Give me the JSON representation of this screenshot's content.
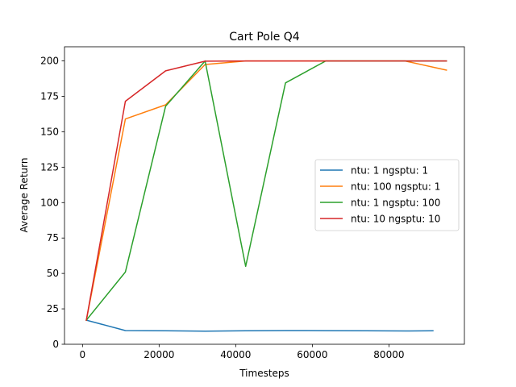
{
  "chart_data": {
    "type": "line",
    "title": "Cart Pole Q4",
    "xlabel": "Timesteps",
    "ylabel": "Average Return",
    "xlim": [
      -4700,
      99700
    ],
    "ylim": [
      0,
      210
    ],
    "xticks": [
      0,
      20000,
      40000,
      60000,
      80000
    ],
    "xtick_labels": [
      "0",
      "20000",
      "40000",
      "60000",
      "80000"
    ],
    "yticks": [
      0,
      25,
      50,
      75,
      100,
      125,
      150,
      175,
      200
    ],
    "ytick_labels": [
      "0",
      "25",
      "50",
      "75",
      "100",
      "125",
      "150",
      "175",
      "200"
    ],
    "grid": false,
    "legend_position": "center-right",
    "series": [
      {
        "name": "ntu: 1 ngsptu: 1",
        "color": "#1f77b4",
        "x": [
          1000,
          11200,
          21700,
          32000,
          42600,
          53000,
          63500,
          74000,
          84200,
          91500
        ],
        "y": [
          17,
          9.7,
          9.5,
          9.3,
          9.5,
          9.7,
          9.6,
          9.5,
          9.4,
          9.5
        ]
      },
      {
        "name": "ntu: 100 ngsptu: 1",
        "color": "#ff7f0e",
        "x": [
          1000,
          11200,
          21700,
          32000,
          42600,
          53000,
          63500,
          74000,
          84200,
          95000
        ],
        "y": [
          17,
          159,
          169,
          197.5,
          200,
          200,
          200,
          200,
          200,
          193.5
        ]
      },
      {
        "name": "ntu: 1 ngsptu: 100",
        "color": "#2ca02c",
        "x": [
          1000,
          11200,
          21700,
          32000,
          42600,
          53000,
          63500,
          74000,
          84200,
          95000
        ],
        "y": [
          17,
          51,
          168,
          200,
          55,
          184.5,
          200,
          200,
          200,
          200
        ]
      },
      {
        "name": "ntu: 10 ngsptu: 10",
        "color": "#d62728",
        "x": [
          1000,
          11200,
          21700,
          32000,
          42600,
          53000,
          63500,
          74000,
          84200,
          95000
        ],
        "y": [
          17,
          171.5,
          193,
          199.8,
          200,
          200,
          200,
          200,
          200,
          200
        ]
      }
    ]
  }
}
